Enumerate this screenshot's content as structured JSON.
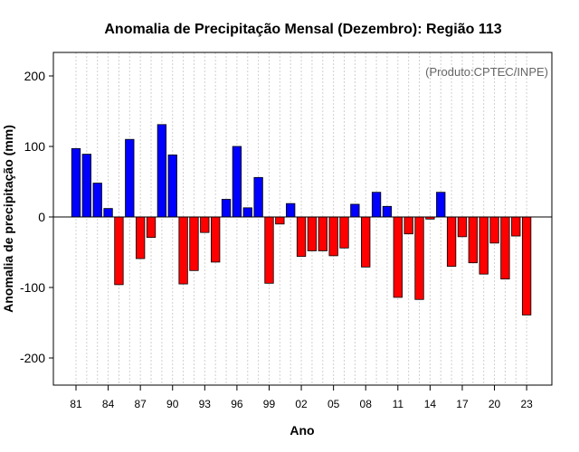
{
  "chart_data": {
    "type": "bar",
    "title": "Anomalia de Precipitação Mensal (Dezembro): Região 113",
    "xlabel": "Ano",
    "ylabel": "Anomalia de precipitação (mm)",
    "credit": "(Produto:CPTEC/INPE)",
    "ylim": [
      -230,
      230
    ],
    "yticks": [
      -200,
      -100,
      0,
      100,
      200
    ],
    "xtick_labels": [
      "81",
      "84",
      "87",
      "90",
      "93",
      "96",
      "99",
      "02",
      "05",
      "08",
      "11",
      "14",
      "17",
      "20",
      "23"
    ],
    "categories": [
      "1981",
      "1982",
      "1983",
      "1984",
      "1985",
      "1986",
      "1987",
      "1988",
      "1989",
      "1990",
      "1991",
      "1992",
      "1993",
      "1994",
      "1995",
      "1996",
      "1997",
      "1998",
      "1999",
      "2000",
      "2001",
      "2002",
      "2003",
      "2004",
      "2005",
      "2006",
      "2007",
      "2008",
      "2009",
      "2010",
      "2011",
      "2012",
      "2013",
      "2014",
      "2015",
      "2016",
      "2017",
      "2018",
      "2019",
      "2020",
      "2021",
      "2022",
      "2023"
    ],
    "values": [
      97,
      89,
      48,
      12,
      -96,
      110,
      -59,
      -29,
      131,
      88,
      -95,
      -76,
      -22,
      -64,
      25,
      100,
      13,
      56,
      -94,
      -10,
      19,
      -56,
      -48,
      -48,
      -55,
      -44,
      18,
      -71,
      35,
      15,
      -114,
      -24,
      -117,
      -3,
      35,
      -70,
      -28,
      -65,
      -81,
      -37,
      -88,
      -27,
      -139
    ],
    "colors": {
      "positive": "#0000ff",
      "negative": "#ff0000"
    },
    "grid": true
  }
}
